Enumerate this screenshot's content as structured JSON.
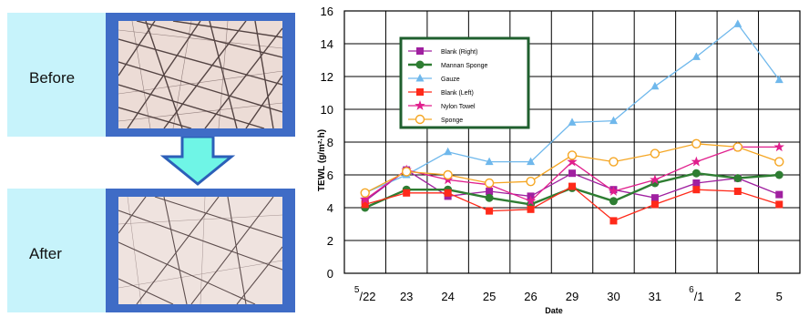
{
  "panels": {
    "before_label": "Before",
    "after_label": "After"
  },
  "colors": {
    "panel_bg": "#c7f3fb",
    "photo_frame": "#3f6cc6",
    "arrow": "#6ff5e6",
    "legend_border": "#1f5f2e"
  },
  "chart_data": {
    "type": "line",
    "title": "",
    "xlabel": "Date",
    "ylabel": "TEWL (g/m²·h)",
    "ylim": [
      0,
      16
    ],
    "yticks": [
      "0",
      "2",
      "4",
      "6",
      "8",
      "10",
      "12",
      "14",
      "16"
    ],
    "categories": [
      "5/22",
      "23",
      "24",
      "25",
      "26",
      "29",
      "30",
      "31",
      "6/1",
      "2",
      "5"
    ],
    "grid": true,
    "legend_position": "top-left",
    "series": [
      {
        "name": "Blank (Right)",
        "color": "#a020a0",
        "marker": "square",
        "values": [
          4.4,
          6.3,
          4.7,
          5.0,
          4.7,
          6.1,
          5.1,
          4.6,
          5.5,
          5.8,
          4.8
        ]
      },
      {
        "name": "Mannan Sponge",
        "color": "#2e7d32",
        "marker": "circle",
        "values": [
          4.0,
          5.1,
          5.1,
          4.6,
          4.2,
          5.2,
          4.4,
          5.5,
          6.1,
          5.8,
          6.0
        ]
      },
      {
        "name": "Gauze",
        "color": "#6fb8ec",
        "marker": "triangle",
        "values": [
          4.9,
          6.0,
          7.4,
          6.8,
          6.8,
          9.2,
          9.3,
          11.4,
          13.2,
          15.2,
          11.8
        ]
      },
      {
        "name": "Blank (Left)",
        "color": "#ff2a1a",
        "marker": "square",
        "values": [
          4.2,
          4.9,
          4.9,
          3.8,
          3.9,
          5.3,
          3.2,
          4.2,
          5.1,
          5.0,
          4.2
        ]
      },
      {
        "name": "Nylon Towel",
        "color": "#e01e8c",
        "marker": "star",
        "values": [
          4.5,
          6.3,
          5.7,
          5.4,
          4.4,
          6.8,
          5.0,
          5.7,
          6.8,
          7.7,
          7.7
        ]
      },
      {
        "name": "Sponge",
        "color": "#f5a623",
        "marker": "open-circle",
        "values": [
          4.9,
          6.2,
          6.0,
          5.5,
          5.6,
          7.2,
          6.8,
          7.3,
          7.9,
          7.7,
          6.8
        ]
      }
    ]
  }
}
